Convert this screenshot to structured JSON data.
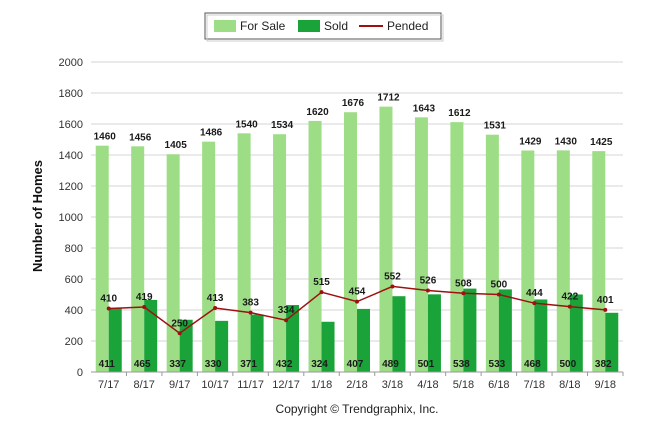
{
  "chart_data": {
    "type": "bar",
    "ylabel": "Number of Homes",
    "xlabel": "",
    "ylim": [
      0,
      2000
    ],
    "yticks": [
      0,
      200,
      400,
      600,
      800,
      1000,
      1200,
      1400,
      1600,
      1800,
      2000
    ],
    "grid": true,
    "legend_position": "top-center",
    "categories": [
      "7/17",
      "8/17",
      "9/17",
      "10/17",
      "11/17",
      "12/17",
      "1/18",
      "2/18",
      "3/18",
      "4/18",
      "5/18",
      "6/18",
      "7/18",
      "8/18",
      "9/18"
    ],
    "series": [
      {
        "name": "For Sale",
        "kind": "bar",
        "color": "#9ddd85",
        "values": [
          1460,
          1456,
          1405,
          1486,
          1540,
          1534,
          1620,
          1676,
          1712,
          1643,
          1612,
          1531,
          1429,
          1430,
          1425
        ]
      },
      {
        "name": "Sold",
        "kind": "bar",
        "color": "#19a338",
        "values": [
          411,
          465,
          337,
          330,
          371,
          432,
          324,
          407,
          489,
          501,
          538,
          533,
          468,
          500,
          382
        ]
      },
      {
        "name": "Pended",
        "kind": "line",
        "color": "#a01010",
        "values": [
          410,
          419,
          250,
          413,
          383,
          334,
          515,
          454,
          552,
          526,
          508,
          500,
          444,
          422,
          401
        ]
      }
    ],
    "footer": "Copyright © Trendgraphix, Inc."
  }
}
